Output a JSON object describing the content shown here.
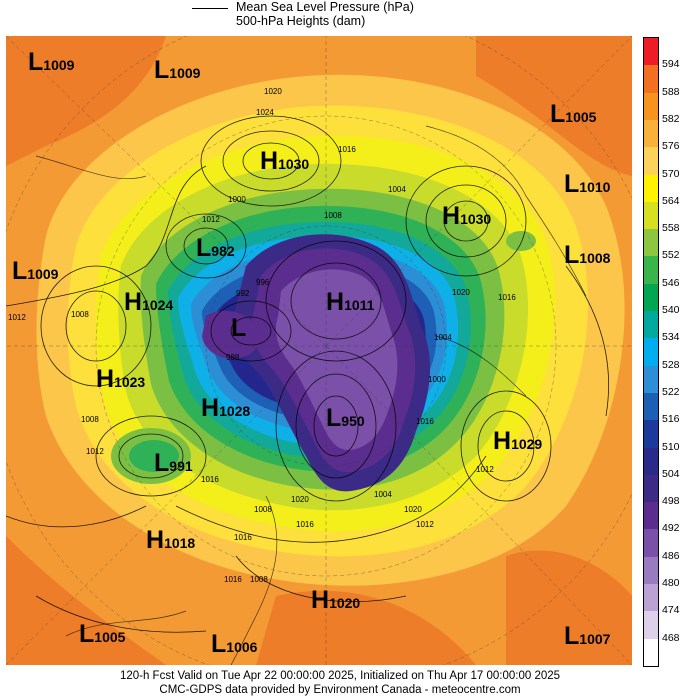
{
  "legend": {
    "line1": "Mean Sea Level Pressure (hPa)",
    "line2": "500-hPa Heights (dam)"
  },
  "map_labels": [
    {
      "letter": "L",
      "value": "1009"
    },
    {
      "letter": "L",
      "value": "1009"
    },
    {
      "letter": "L",
      "value": "1005"
    },
    {
      "letter": "H",
      "value": "1030"
    },
    {
      "letter": "L",
      "value": "1010"
    },
    {
      "letter": "H",
      "value": "1030"
    },
    {
      "letter": "L",
      "value": "982"
    },
    {
      "letter": "L",
      "value": "1008"
    },
    {
      "letter": "L",
      "value": "1009"
    },
    {
      "letter": "H",
      "value": "1024"
    },
    {
      "letter": "H",
      "value": "1011"
    },
    {
      "letter": "L",
      "value": ""
    },
    {
      "letter": "H",
      "value": "1023"
    },
    {
      "letter": "H",
      "value": "1028"
    },
    {
      "letter": "L",
      "value": "950"
    },
    {
      "letter": "H",
      "value": "1029"
    },
    {
      "letter": "L",
      "value": "991"
    },
    {
      "letter": "H",
      "value": "1018"
    },
    {
      "letter": "H",
      "value": "1020"
    },
    {
      "letter": "L",
      "value": "1005"
    },
    {
      "letter": "L",
      "value": "1006"
    },
    {
      "letter": "L",
      "value": "1007"
    }
  ],
  "contour_labels": [
    "1020",
    "1024",
    "1016",
    "1012",
    "1008",
    "1000",
    "1004",
    "996",
    "992",
    "988",
    "1020",
    "1016",
    "1012",
    "1008",
    "1004",
    "1000",
    "1008",
    "1012",
    "1016",
    "1020",
    "1016",
    "1020",
    "1012",
    "1004",
    "1008",
    "1016",
    "1016",
    "1008",
    "1012",
    "1016"
  ],
  "colorbar": {
    "ticks": [
      "594",
      "588",
      "582",
      "576",
      "570",
      "564",
      "558",
      "552",
      "546",
      "540",
      "534",
      "528",
      "522",
      "516",
      "510",
      "504",
      "498",
      "492",
      "486",
      "480",
      "474",
      "468"
    ],
    "colors": [
      "#ee1c24",
      "#f36f21",
      "#f7941d",
      "#f9b13a",
      "#fbd35a",
      "#fff200",
      "#d7df23",
      "#8dc63f",
      "#39b54a",
      "#00a651",
      "#00a99d",
      "#00aeef",
      "#2e8fd8",
      "#1c5fb5",
      "#1b3a9c",
      "#2a2a8a",
      "#3d2b85",
      "#5b2d8e",
      "#7a50a8",
      "#9a7bc0",
      "#baa3d4",
      "#dcd0ea",
      "#ffffff"
    ]
  },
  "footer": {
    "line1": "120-h Fcst Valid on Tue Apr 22 00:00:00 2025, Initialized on Thu Apr 17 00:00:00 2025",
    "line2": "CMC-GDPS data provided by Environment Canada - meteocentre.com"
  }
}
